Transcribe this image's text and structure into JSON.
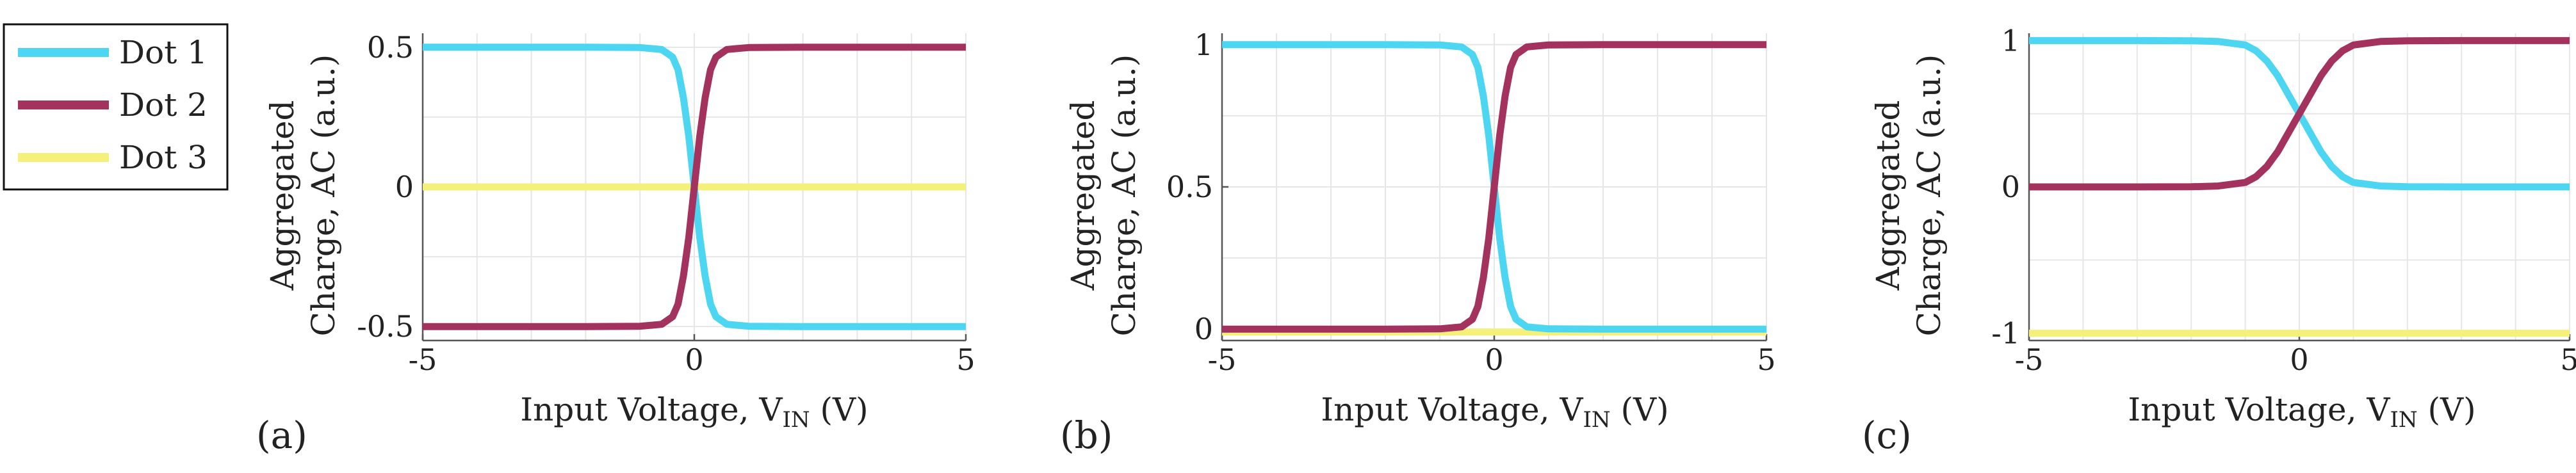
{
  "legend": {
    "entries": [
      {
        "label": "Dot 1",
        "color": "#4dd6f2"
      },
      {
        "label": "Dot 2",
        "color": "#a3325e"
      },
      {
        "label": "Dot 3",
        "color": "#f5f07a"
      }
    ]
  },
  "chart_data": [
    {
      "type": "line",
      "panel": "(a)",
      "xlabel_main": "Input Voltage, V",
      "xlabel_sub": "IN",
      "xlabel_unit": " (V)",
      "ylabel_line1": "Aggregated",
      "ylabel_line2": "Charge, AC (a.u.)",
      "xlim": [
        -5,
        5
      ],
      "ylim": [
        -0.55,
        0.55
      ],
      "xticks": [
        {
          "value": -5,
          "label": "-5"
        },
        {
          "value": 0,
          "label": "0"
        },
        {
          "value": 5,
          "label": "5"
        }
      ],
      "yticks": [
        {
          "value": -0.5,
          "label": "-0.5"
        },
        {
          "value": 0,
          "label": "0"
        },
        {
          "value": 0.5,
          "label": "0.5"
        }
      ],
      "grid": true,
      "x": [
        -5,
        -4,
        -3,
        -2,
        -1,
        -0.6,
        -0.4,
        -0.3,
        -0.2,
        -0.1,
        0,
        0.1,
        0.2,
        0.3,
        0.4,
        0.6,
        1,
        2,
        3,
        4,
        5
      ],
      "series": [
        {
          "name": "Dot 1",
          "values": [
            0.5,
            0.5,
            0.5,
            0.5,
            0.499,
            0.492,
            0.465,
            0.42,
            0.32,
            0.18,
            0,
            -0.18,
            -0.32,
            -0.42,
            -0.465,
            -0.492,
            -0.499,
            -0.5,
            -0.5,
            -0.5,
            -0.5
          ]
        },
        {
          "name": "Dot 2",
          "values": [
            -0.5,
            -0.5,
            -0.5,
            -0.5,
            -0.499,
            -0.492,
            -0.465,
            -0.42,
            -0.32,
            -0.18,
            0,
            0.18,
            0.32,
            0.42,
            0.465,
            0.492,
            0.499,
            0.5,
            0.5,
            0.5,
            0.5
          ]
        },
        {
          "name": "Dot 3",
          "values": [
            0,
            0,
            0,
            0,
            0,
            0,
            0,
            0,
            0,
            0,
            0,
            0,
            0,
            0,
            0,
            0,
            0,
            0,
            0,
            0,
            0
          ]
        }
      ]
    },
    {
      "type": "line",
      "panel": "(b)",
      "xlabel_main": "Input Voltage, V",
      "xlabel_sub": "IN",
      "xlabel_unit": " (V)",
      "ylabel_line1": "Aggregated",
      "ylabel_line2": "Charge, AC (a.u.)",
      "xlim": [
        -5,
        5
      ],
      "ylim": [
        -0.04,
        1.04
      ],
      "xticks": [
        {
          "value": -5,
          "label": "-5"
        },
        {
          "value": 0,
          "label": "0"
        },
        {
          "value": 5,
          "label": "5"
        }
      ],
      "yticks": [
        {
          "value": 0,
          "label": "0"
        },
        {
          "value": 0.5,
          "label": "0.5"
        },
        {
          "value": 1,
          "label": "1"
        }
      ],
      "grid": true,
      "x": [
        -5,
        -4,
        -3,
        -2,
        -1,
        -0.6,
        -0.4,
        -0.3,
        -0.2,
        -0.1,
        0,
        0.1,
        0.2,
        0.3,
        0.4,
        0.6,
        1,
        2,
        3,
        4,
        5
      ],
      "series": [
        {
          "name": "Dot 1",
          "values": [
            1,
            1,
            1,
            1,
            0.999,
            0.992,
            0.965,
            0.92,
            0.82,
            0.68,
            0.5,
            0.32,
            0.18,
            0.08,
            0.035,
            0.008,
            0.001,
            0,
            0,
            0,
            0
          ]
        },
        {
          "name": "Dot 2",
          "values": [
            0,
            0,
            0,
            0,
            0.001,
            0.008,
            0.035,
            0.08,
            0.18,
            0.32,
            0.5,
            0.68,
            0.82,
            0.92,
            0.965,
            0.992,
            0.999,
            1,
            1,
            1,
            1
          ]
        },
        {
          "name": "Dot 3",
          "values": [
            -0.01,
            -0.01,
            -0.01,
            -0.01,
            -0.01,
            -0.01,
            -0.01,
            -0.01,
            -0.01,
            -0.01,
            -0.01,
            -0.01,
            -0.01,
            -0.01,
            -0.01,
            -0.01,
            -0.01,
            -0.01,
            -0.01,
            -0.01,
            -0.01
          ]
        }
      ]
    },
    {
      "type": "line",
      "panel": "(c)",
      "xlabel_main": "Input Voltage, V",
      "xlabel_sub": "IN",
      "xlabel_unit": " (V)",
      "ylabel_line1": "Aggregated",
      "ylabel_line2": "Charge, AC (a.u.)",
      "xlim": [
        -5,
        5
      ],
      "ylim": [
        -1.05,
        1.05
      ],
      "xticks": [
        {
          "value": -5,
          "label": "-5"
        },
        {
          "value": 0,
          "label": "0"
        },
        {
          "value": 5,
          "label": "5"
        }
      ],
      "yticks": [
        {
          "value": -1,
          "label": "-1"
        },
        {
          "value": 0,
          "label": "0"
        },
        {
          "value": 1,
          "label": "1"
        }
      ],
      "grid": true,
      "x": [
        -5,
        -4,
        -3,
        -2,
        -1.5,
        -1,
        -0.8,
        -0.6,
        -0.4,
        -0.2,
        0,
        0.2,
        0.4,
        0.6,
        0.8,
        1,
        1.5,
        2,
        3,
        4,
        5
      ],
      "series": [
        {
          "name": "Dot 1",
          "values": [
            1,
            1,
            1,
            0.999,
            0.994,
            0.97,
            0.93,
            0.86,
            0.76,
            0.63,
            0.5,
            0.37,
            0.24,
            0.14,
            0.07,
            0.03,
            0.006,
            0.001,
            0,
            0,
            0
          ]
        },
        {
          "name": "Dot 2",
          "values": [
            0,
            0,
            0,
            0.001,
            0.006,
            0.03,
            0.07,
            0.14,
            0.24,
            0.37,
            0.5,
            0.63,
            0.76,
            0.86,
            0.93,
            0.97,
            0.994,
            0.999,
            1,
            1,
            1
          ]
        },
        {
          "name": "Dot 3",
          "values": [
            -1,
            -1,
            -1,
            -1,
            -1,
            -1,
            -1,
            -1,
            -1,
            -1,
            -1,
            -1,
            -1,
            -1,
            -1,
            -1,
            -1,
            -1,
            -1,
            -1,
            -1
          ]
        }
      ]
    }
  ]
}
